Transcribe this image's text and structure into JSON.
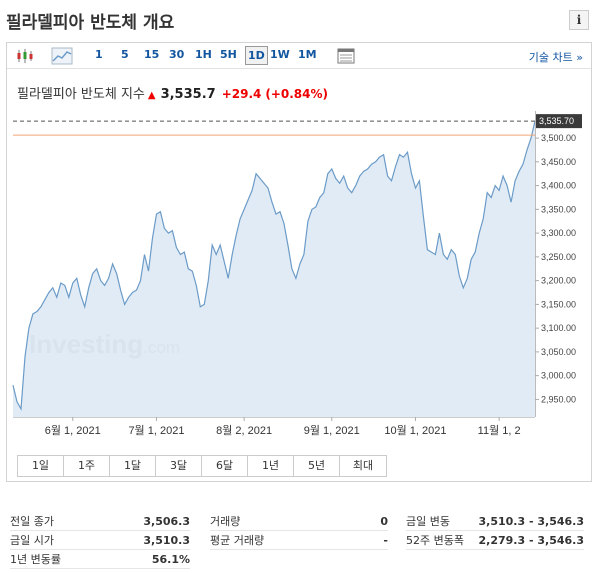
{
  "header": {
    "title": "필라델피아 반도체 개요",
    "info_label": "i"
  },
  "toolbar": {
    "periods": [
      "1",
      "5",
      "15",
      "30",
      "1H",
      "5H",
      "1D",
      "1W",
      "1M"
    ],
    "selected": "1D",
    "technical_label": "기술 차트 »"
  },
  "quote": {
    "name": "필라델피아 반도체 지수",
    "value": "3,535.7",
    "change": "+29.4",
    "change_pct": "(+0.84%)"
  },
  "chart_data": {
    "type": "area",
    "watermark": "Investing",
    "watermark_suffix": ".com",
    "last_value_label": "3,535.70",
    "y_ticks": [
      "3,500.00",
      "3,450.00",
      "3,400.00",
      "3,350.00",
      "3,300.00",
      "3,250.00",
      "3,200.00",
      "3,150.00",
      "3,100.00",
      "3,050.00",
      "3,000.00",
      "2,950.00"
    ],
    "y_tick_values": [
      3500,
      3450,
      3400,
      3350,
      3300,
      3250,
      3200,
      3150,
      3100,
      3050,
      3000,
      2950
    ],
    "x_ticks": [
      "6월 1, 2021",
      "7월 1, 2021",
      "8월 2, 2021",
      "9월 1, 2021",
      "10월 1, 2021",
      "11월 1, 2"
    ],
    "x_tick_index": [
      15,
      36,
      58,
      80,
      101,
      122
    ],
    "ylim": [
      2913,
      3557
    ],
    "reference_line": 3506.3,
    "values": [
      2980,
      2945,
      2930,
      3040,
      3100,
      3130,
      3135,
      3145,
      3160,
      3175,
      3185,
      3165,
      3195,
      3190,
      3165,
      3195,
      3205,
      3170,
      3145,
      3185,
      3215,
      3225,
      3200,
      3190,
      3205,
      3235,
      3215,
      3180,
      3150,
      3165,
      3175,
      3180,
      3200,
      3255,
      3220,
      3290,
      3340,
      3345,
      3310,
      3300,
      3305,
      3270,
      3255,
      3260,
      3225,
      3220,
      3190,
      3145,
      3150,
      3200,
      3275,
      3255,
      3275,
      3240,
      3205,
      3255,
      3295,
      3330,
      3350,
      3370,
      3390,
      3425,
      3415,
      3405,
      3395,
      3365,
      3340,
      3345,
      3320,
      3275,
      3225,
      3205,
      3235,
      3255,
      3325,
      3350,
      3355,
      3375,
      3385,
      3425,
      3435,
      3415,
      3405,
      3420,
      3395,
      3385,
      3400,
      3420,
      3430,
      3435,
      3445,
      3450,
      3460,
      3465,
      3420,
      3410,
      3440,
      3465,
      3460,
      3470,
      3425,
      3395,
      3410,
      3335,
      3265,
      3260,
      3255,
      3300,
      3255,
      3245,
      3265,
      3255,
      3210,
      3185,
      3205,
      3245,
      3260,
      3300,
      3330,
      3385,
      3375,
      3400,
      3390,
      3420,
      3400,
      3365,
      3410,
      3430,
      3445,
      3475,
      3500,
      3535.7
    ],
    "line_color": "#6b9bc8",
    "fill_color": "#dce8f3"
  },
  "ranges": [
    "1일",
    "1주",
    "1달",
    "3달",
    "6달",
    "1년",
    "5년",
    "최대"
  ],
  "stats": {
    "col1": [
      {
        "label": "전일 종가",
        "value": "3,506.3"
      },
      {
        "label": "금일 시가",
        "value": "3,510.3"
      },
      {
        "label": "1년 변동률",
        "value": "56.1%"
      }
    ],
    "col2": [
      {
        "label": "거래량",
        "value": "0"
      },
      {
        "label": "평균 거래량",
        "value": "-"
      }
    ],
    "col3": [
      {
        "label": "금일 변동",
        "value": "3,510.3 - 3,546.3"
      },
      {
        "label": "52주 변동폭",
        "value": "2,279.3 - 3,546.3"
      }
    ]
  }
}
